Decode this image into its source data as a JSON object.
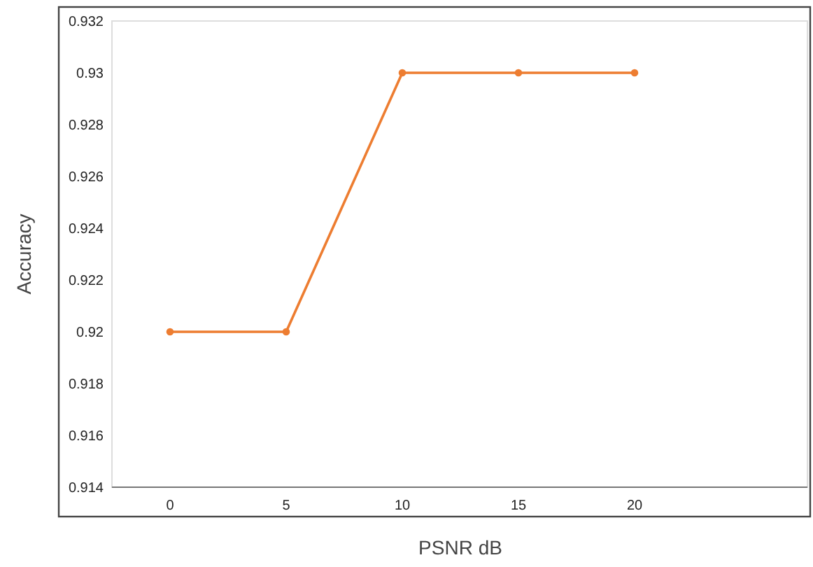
{
  "chart_data": {
    "type": "line",
    "xlabel": "PSNR dB",
    "ylabel": "Accuracy",
    "categories": [
      "0",
      "5",
      "10",
      "15",
      "20",
      null
    ],
    "series": [
      {
        "color": "#ed7d31",
        "values": [
          0.92,
          0.92,
          0.93,
          0.93,
          0.93,
          null
        ]
      }
    ],
    "ylim": [
      0.914,
      0.932
    ],
    "yticks": [
      0.914,
      0.916,
      0.918,
      0.92,
      0.922,
      0.924,
      0.926,
      0.928,
      0.93,
      0.932
    ],
    "marker": "circle",
    "line_style": "solid"
  }
}
